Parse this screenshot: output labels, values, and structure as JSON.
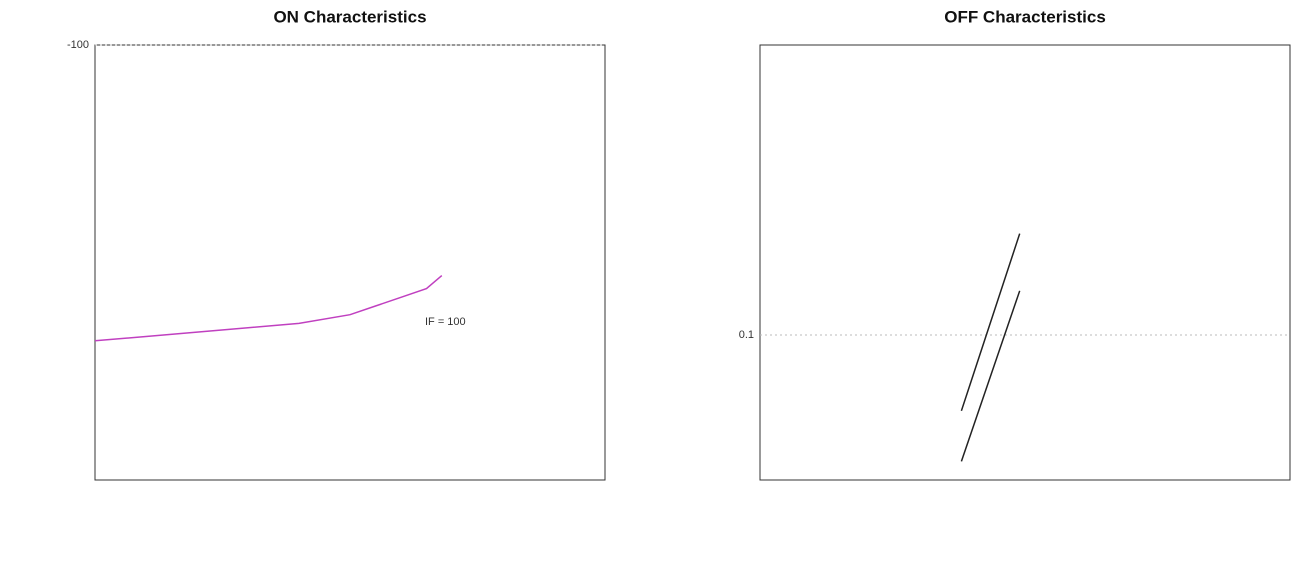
{
  "chart_data": [
    {
      "type": "line",
      "title": "ON Characteristics",
      "x": [
        0,
        1,
        2,
        3,
        4,
        5,
        5.5,
        6,
        6.5,
        6.8
      ],
      "series": [
        {
          "color": "#c040c0",
          "values": [
            -32,
            -33,
            -34,
            -35,
            -36,
            -38,
            -40,
            -42,
            -44,
            -47
          ]
        }
      ],
      "annotations": [
        "IF = 100"
      ],
      "xlim": [
        0,
        10
      ],
      "ylim": [
        0,
        -100
      ],
      "yticks": [
        -100
      ],
      "grid": true
    },
    {
      "type": "line",
      "title": "OFF Characteristics",
      "x": [
        3.8,
        4.9
      ],
      "series": [
        {
          "color": "#222222",
          "values": [
            0.03,
            0.5
          ]
        },
        {
          "color": "#222222",
          "values": [
            0.02,
            0.3
          ]
        }
      ],
      "xlim": [
        0,
        10
      ],
      "ylim": [
        0.01,
        10
      ],
      "yticks": [
        0.1
      ],
      "log_y": true,
      "grid": true
    }
  ]
}
